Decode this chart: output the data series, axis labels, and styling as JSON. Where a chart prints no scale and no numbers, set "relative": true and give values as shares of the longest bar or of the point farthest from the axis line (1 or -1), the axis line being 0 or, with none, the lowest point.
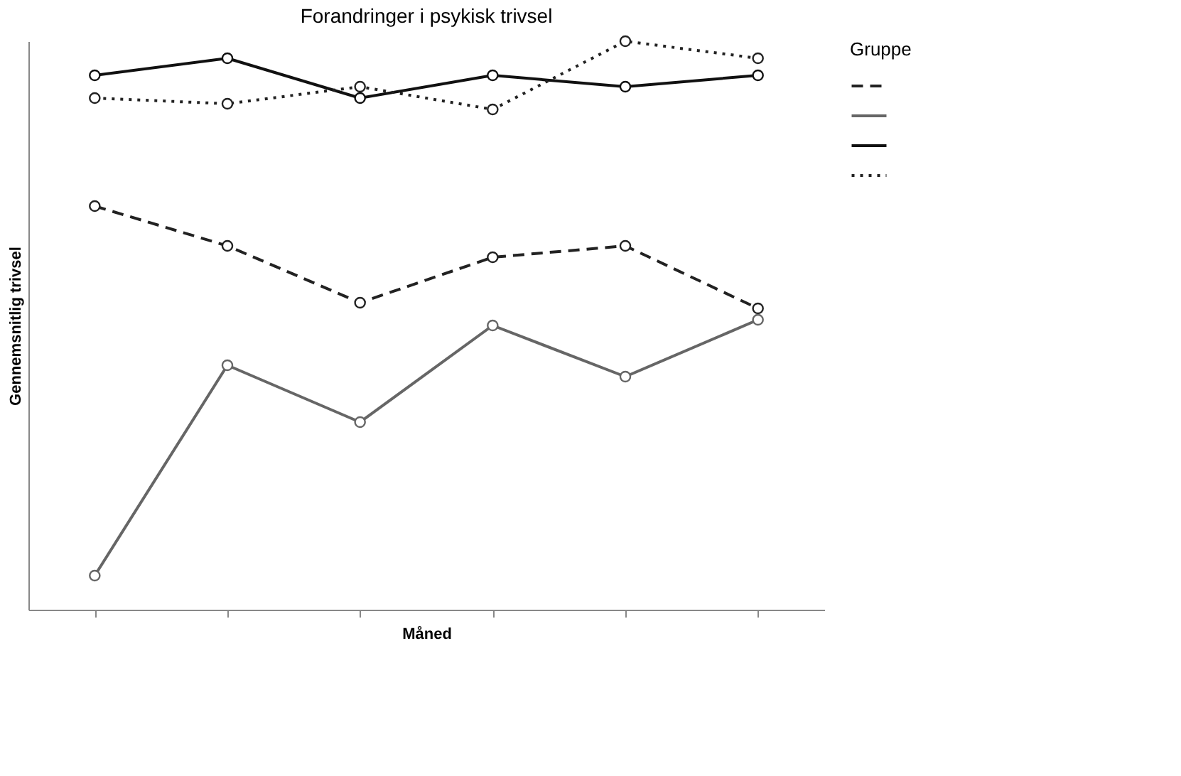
{
  "chart_data": {
    "type": "line",
    "title": "Forandringer i psykisk trivsel",
    "xlabel": "Måned",
    "ylabel": "Gennemsnitlig trivsel",
    "legend_title": "Gruppe",
    "relative": true,
    "marker": "circle",
    "categories": [
      null,
      null,
      null,
      null,
      null,
      null
    ],
    "series": [
      {
        "color": "#222222",
        "line_style": "dashed",
        "values": [
          0.71,
          0.64,
          0.54,
          0.62,
          0.64,
          0.53
        ]
      },
      {
        "color": "#666666",
        "line_style": "solid",
        "values": [
          0.06,
          0.43,
          0.33,
          0.5,
          0.41,
          0.51
        ]
      },
      {
        "color": "#111111",
        "line_style": "solid",
        "values": [
          0.94,
          0.97,
          0.9,
          0.94,
          0.92,
          0.94
        ]
      },
      {
        "color": "#222222",
        "line_style": "dotted",
        "values": [
          0.9,
          0.89,
          0.92,
          0.88,
          1,
          0.97
        ]
      }
    ]
  }
}
